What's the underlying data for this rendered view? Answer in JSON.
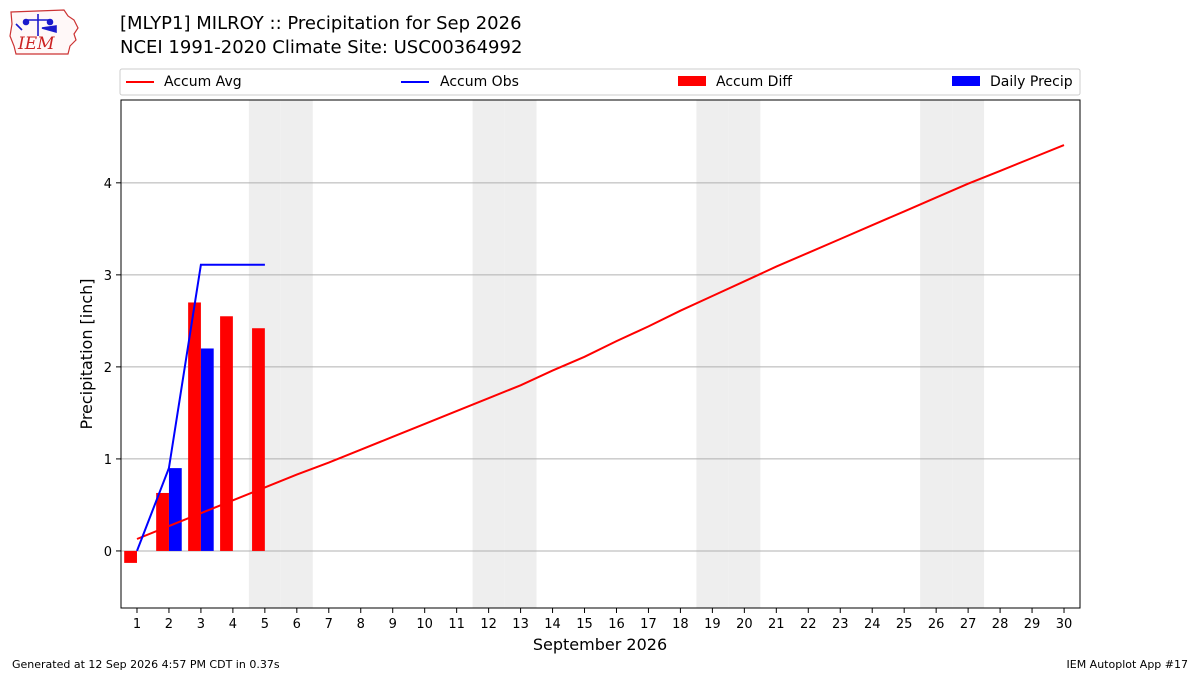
{
  "header": {
    "logo_text": "IEM",
    "title_line1": "[MLYP1] MILROY :: Precipitation for Sep 2026",
    "title_line2": "NCEI 1991-2020 Climate Site: USC00364992"
  },
  "footer": {
    "generated": "Generated at 12 Sep 2026 4:57 PM CDT in 0.37s",
    "app": "IEM Autoplot App #17"
  },
  "colors": {
    "accum_avg": "#ff0000",
    "accum_obs": "#0000ff",
    "accum_diff": "#ff0000",
    "daily_precip": "#0000ff",
    "weekend_band": "#eeeeee",
    "grid": "#b0b0b0"
  },
  "chart_data": {
    "type": "bar",
    "xlabel": "September 2026",
    "ylabel": "Precipitation [inch]",
    "xlim": [
      0.5,
      30.5
    ],
    "ylim": [
      -0.62,
      4.9
    ],
    "x_ticks": [
      1,
      2,
      3,
      4,
      5,
      6,
      7,
      8,
      9,
      10,
      11,
      12,
      13,
      14,
      15,
      16,
      17,
      18,
      19,
      20,
      21,
      22,
      23,
      24,
      25,
      26,
      27,
      28,
      29,
      30
    ],
    "y_ticks": [
      0,
      1,
      2,
      3,
      4
    ],
    "grid": "horizontal",
    "legend_position": "top",
    "weekend_days": [
      5,
      6,
      12,
      13,
      19,
      20,
      26,
      27
    ],
    "series": [
      {
        "name": "Accum Avg",
        "kind": "line",
        "x": [
          1,
          2,
          3,
          4,
          5,
          6,
          7,
          8,
          9,
          10,
          11,
          12,
          13,
          14,
          15,
          16,
          17,
          18,
          19,
          20,
          21,
          22,
          23,
          24,
          25,
          26,
          27,
          28,
          29,
          30
        ],
        "values": [
          0.13,
          0.27,
          0.41,
          0.55,
          0.69,
          0.83,
          0.96,
          1.1,
          1.24,
          1.38,
          1.52,
          1.66,
          1.8,
          1.96,
          2.11,
          2.28,
          2.44,
          2.61,
          2.77,
          2.93,
          3.09,
          3.24,
          3.39,
          3.54,
          3.69,
          3.84,
          3.99,
          4.13,
          4.27,
          4.41
        ]
      },
      {
        "name": "Accum Obs",
        "kind": "line",
        "x": [
          1,
          2,
          3,
          4,
          5
        ],
        "values": [
          0.0,
          0.9,
          3.11,
          3.11,
          3.11
        ]
      },
      {
        "name": "Accum Diff",
        "kind": "bar",
        "x": [
          1,
          2,
          3,
          4,
          5
        ],
        "values": [
          -0.13,
          0.63,
          2.7,
          2.55,
          2.42
        ]
      },
      {
        "name": "Daily Precip",
        "kind": "bar",
        "x": [
          2,
          3
        ],
        "values": [
          0.9,
          2.2
        ]
      }
    ]
  }
}
